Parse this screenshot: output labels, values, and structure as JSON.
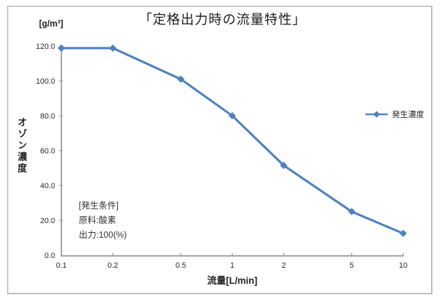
{
  "chart": {
    "title": "「定格出力時の流量特性」",
    "y_unit": "[g/m³]",
    "y_title": "オゾン濃度",
    "x_title": "流量[L/min]",
    "legend_label": "発生濃度",
    "annotation": {
      "line1": "[発生条件]",
      "line2": "原料:酸素",
      "line3": "出力:100(%)"
    }
  },
  "chart_data": {
    "type": "line",
    "title": "「定格出力時の流量特性」",
    "xlabel": "流量[L/min]",
    "ylabel": "オゾン濃度 [g/m³]",
    "x_scale": "log",
    "xlim": [
      0.1,
      10
    ],
    "ylim": [
      0,
      120
    ],
    "grid": false,
    "legend_position": "right",
    "series": [
      {
        "name": "発生濃度",
        "x": [
          0.1,
          0.2,
          0.5,
          1,
          2,
          5,
          10
        ],
        "y": [
          118.8,
          118.8,
          101.0,
          80.0,
          51.5,
          25.0,
          12.5
        ]
      }
    ],
    "x_ticks": [
      0.1,
      0.2,
      0.5,
      1,
      2,
      5,
      10
    ],
    "x_tick_labels": [
      "0.1",
      "0.2",
      "0.5",
      "1",
      "2",
      "5",
      "10"
    ],
    "y_ticks": [
      0,
      20,
      40,
      60,
      80,
      100,
      120
    ],
    "y_tick_labels": [
      "0.0",
      "20.0",
      "40.0",
      "60.0",
      "80.0",
      "100.0",
      "120.0"
    ],
    "line_color": "#4F81BD",
    "axis_color": "#a3a3a3"
  }
}
